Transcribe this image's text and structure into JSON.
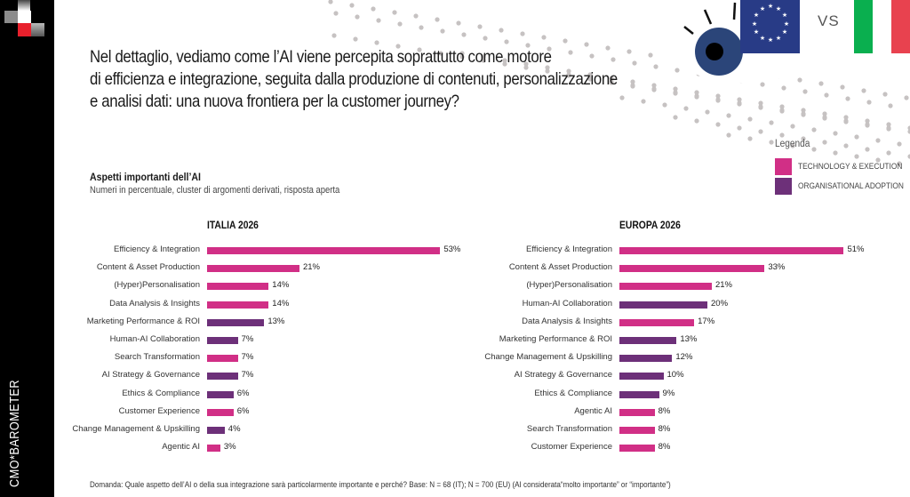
{
  "brand": {
    "name": "CMO*BAROMETER"
  },
  "header": {
    "headline_lines": [
      "Nel dettaglio, vediamo come l’AI viene percepita soprattutto come motore",
      "di efficienza e integrazione, seguita dalla produzione di contenuti, personalizzazione",
      "e analisi dati: una nuova frontiera per la customer journey?"
    ],
    "comparison": {
      "left_flag": "eu-flag-icon",
      "vs_label": "VS",
      "right_flag": "italy-flag-icon"
    }
  },
  "section": {
    "title": "Aspetti importanti dell’AI",
    "note": "Numeri in percentuale, cluster di argomenti derivati, risposta aperta"
  },
  "legend": {
    "title": "Legenda",
    "items": [
      {
        "label": "TECHNOLOGY & EXECUTION",
        "color": "#d12f86"
      },
      {
        "label": "ORGANISATIONAL ADOPTION",
        "color": "#6d3079"
      }
    ]
  },
  "colors": {
    "tech": "#d12f86",
    "org": "#6d3079",
    "background": "#d4e3ee",
    "sidebar": "#000000"
  },
  "footnote": "Domanda: Quale aspetto dell’AI o della sua integrazione sarà particolarmente importante e perché? Base: N = 68 (IT);  N = 700 (EU) (AI considerata“molto importante” or “importante”)",
  "chart_data": [
    {
      "type": "bar",
      "orientation": "horizontal",
      "title": "ITALIA 2026",
      "xlabel": "",
      "ylabel": "",
      "unit": "%",
      "categories": [
        "Efficiency & Integration",
        "Content & Asset Production",
        "(Hyper)Personalisation",
        "Data Analysis & Insights",
        "Marketing Performance & ROI",
        "Human-AI Collaboration",
        "Search Transformation",
        "AI Strategy & Governance",
        "Ethics & Compliance",
        "Customer Experience",
        "Change Management & Upskilling",
        "Agentic AI"
      ],
      "values": [
        53,
        21,
        14,
        14,
        13,
        7,
        7,
        7,
        6,
        6,
        4,
        3
      ],
      "labels": [
        "53%",
        "21%",
        "14%",
        "14%",
        "13%",
        "7%",
        "7%",
        "7%",
        "6%",
        "6%",
        "4%",
        "3%"
      ],
      "cluster": [
        "tech",
        "tech",
        "tech",
        "tech",
        "org",
        "org",
        "tech",
        "org",
        "org",
        "tech",
        "org",
        "tech"
      ],
      "legend": [
        "TECHNOLOGY & EXECUTION",
        "ORGANISATIONAL ADOPTION"
      ],
      "grid": false
    },
    {
      "type": "bar",
      "orientation": "horizontal",
      "title": "EUROPA 2026",
      "xlabel": "",
      "ylabel": "",
      "unit": "%",
      "categories": [
        "Efficiency & Integration",
        "Content & Asset Production",
        "(Hyper)Personalisation",
        "Human-AI Collaboration",
        "Data Analysis & Insights",
        "Marketing Performance & ROI",
        "Change Management & Upskilling",
        "AI Strategy & Governance",
        "Ethics & Compliance",
        "Agentic AI",
        "Search Transformation",
        "Customer Experience"
      ],
      "values": [
        51,
        33,
        21,
        20,
        17,
        13,
        12,
        10,
        9,
        8,
        8,
        8
      ],
      "labels": [
        "51%",
        "33%",
        "21%",
        "20%",
        "17%",
        "13%",
        "12%",
        "10%",
        "9%",
        "8%",
        "8%",
        "8%"
      ],
      "cluster": [
        "tech",
        "tech",
        "tech",
        "org",
        "tech",
        "org",
        "org",
        "org",
        "org",
        "tech",
        "tech",
        "tech"
      ],
      "legend": [
        "TECHNOLOGY & EXECUTION",
        "ORGANISATIONAL ADOPTION"
      ],
      "grid": false
    }
  ]
}
